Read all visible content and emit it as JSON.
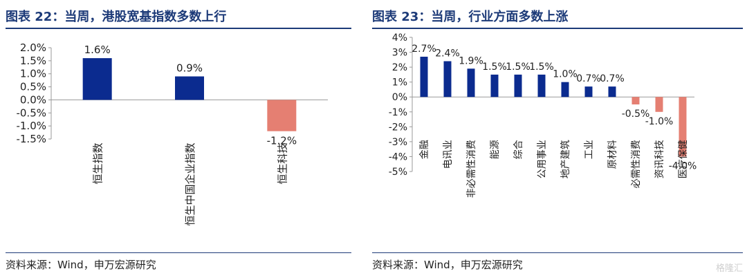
{
  "colors": {
    "positive": "#0b2b8f",
    "negative": "#e57f72",
    "title": "#1c3a78",
    "axis": "#999999"
  },
  "left_panel": {
    "title": "图表 22：当周，港股宽基指数多数上行",
    "source": "资料来源：Wind，申万宏源研究"
  },
  "right_panel": {
    "title": "图表 23：当周，行业方面多数上涨",
    "source": "资料来源：Wind，申万宏源研究"
  },
  "watermark": "格隆汇",
  "chart_data": [
    {
      "type": "bar",
      "categories": [
        "恒生指数",
        "恒生中国企业指数",
        "恒生科技"
      ],
      "values": [
        1.6,
        0.9,
        -1.2
      ],
      "value_labels": [
        "1.6%",
        "0.9%",
        "-1.2%"
      ],
      "yticks": [
        "2.0%",
        "1.5%",
        "1.0%",
        "0.5%",
        "0.0%",
        "-0.5%",
        "-1.0%",
        "-1.5%"
      ],
      "ylim": [
        -1.5,
        2.0
      ],
      "grid": false
    },
    {
      "type": "bar",
      "categories": [
        "金融",
        "电讯业",
        "非必需性消费",
        "能源",
        "综合",
        "公用事业",
        "地产建筑",
        "工业",
        "原材料",
        "必需性消费",
        "资讯科技",
        "医疗保健"
      ],
      "values": [
        2.7,
        2.4,
        1.9,
        1.5,
        1.5,
        1.5,
        1.0,
        0.7,
        0.7,
        -0.5,
        -1.0,
        -4.0
      ],
      "value_labels": [
        "2.7%",
        "2.4%",
        "1.9%",
        "1.5%",
        "1.5%",
        "1.5%",
        "1.0%",
        "0.7%",
        "0.7%",
        "-0.5%",
        "-1.0%",
        "-4.0%"
      ],
      "yticks": [
        "4%",
        "3%",
        "2%",
        "1%",
        "0%",
        "-1%",
        "-2%",
        "-3%",
        "-4%",
        "-5%"
      ],
      "ylim": [
        -5,
        4
      ],
      "grid": false
    }
  ]
}
